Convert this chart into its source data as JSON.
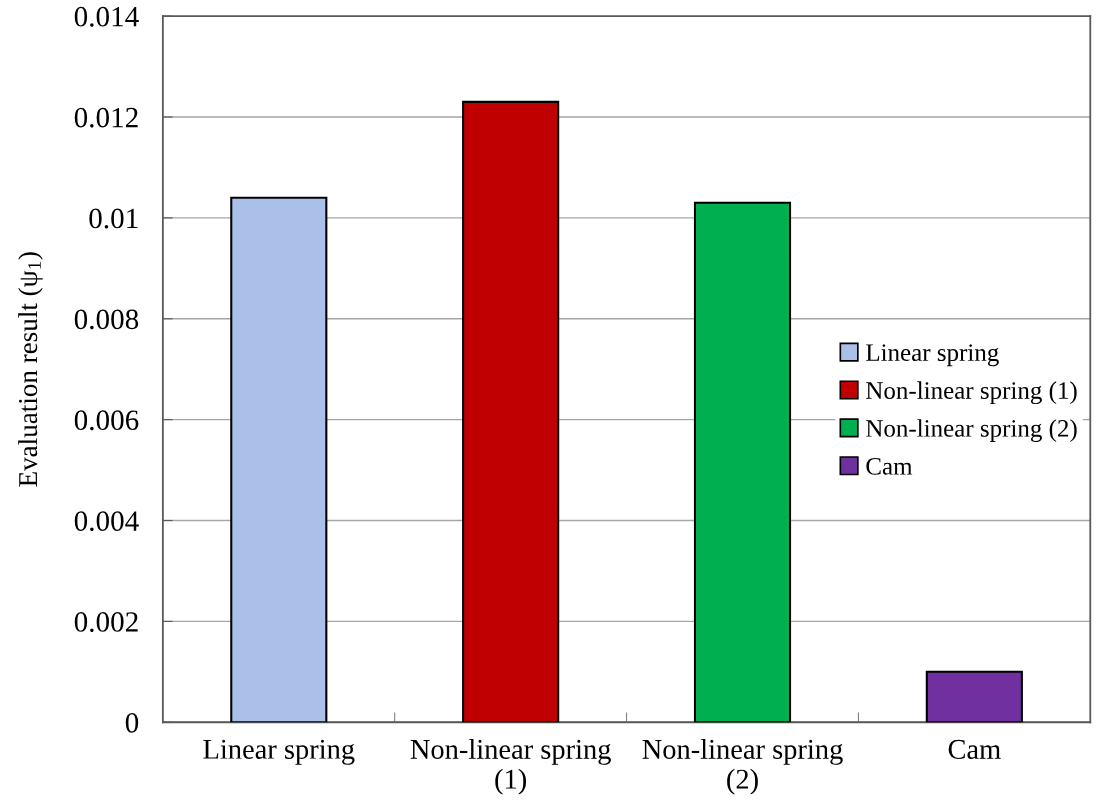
{
  "chart_data": {
    "type": "bar",
    "ylabel": "Evaluation result (ψ$_{1}$)",
    "categories": [
      "Linear spring",
      "Non-linear spring\n(1)",
      "Non-linear spring\n(2)",
      "Cam"
    ],
    "stacked": true,
    "series": [
      {
        "name": "Linear spring",
        "color": "#aac0e8",
        "values": [
          0.0104,
          null,
          null,
          null
        ]
      },
      {
        "name": "Non-linear spring (1)",
        "color": "#c00000",
        "values": [
          null,
          0.0123,
          null,
          null
        ]
      },
      {
        "name": "Non-linear spring (2)",
        "color": "#00b050",
        "values": [
          null,
          null,
          0.0103,
          null
        ]
      },
      {
        "name": "Cam",
        "color": "#7030a0",
        "values": [
          null,
          null,
          null,
          0.001
        ]
      }
    ],
    "ylim": [
      0,
      0.014
    ],
    "yticks": [
      0,
      0.002,
      0.004,
      0.006,
      0.008,
      0.01,
      0.012,
      0.014
    ],
    "grid": "y",
    "legend": "right"
  }
}
